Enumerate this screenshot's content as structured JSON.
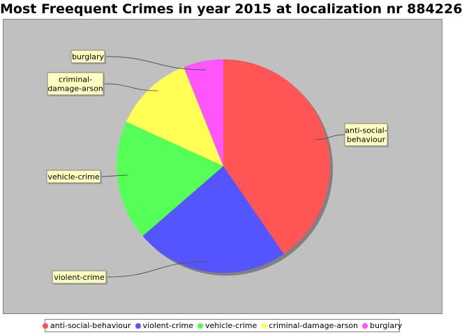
{
  "chart_data": {
    "type": "pie",
    "title": "Most Freequent Crimes in year 2015 at localization nr 884226",
    "slices": [
      {
        "name": "anti-social-behaviour",
        "label_lines": [
          "anti-social-",
          "behaviour"
        ],
        "value": 40,
        "color": "#ff5555"
      },
      {
        "name": "violent-crime",
        "label_lines": [
          "violent-crime"
        ],
        "value": 23,
        "color": "#5555ff"
      },
      {
        "name": "vehicle-crime",
        "label_lines": [
          "vehicle-crime"
        ],
        "value": 18,
        "color": "#55ff55"
      },
      {
        "name": "criminal-damage-arson",
        "label_lines": [
          "criminal-",
          "damage-arson"
        ],
        "value": 12,
        "color": "#ffff55"
      },
      {
        "name": "burglary",
        "label_lines": [
          "burglary"
        ],
        "value": 6,
        "color": "#ff55ff"
      }
    ],
    "legend_position": "bottom",
    "plot_background": "#c0c0c0"
  }
}
